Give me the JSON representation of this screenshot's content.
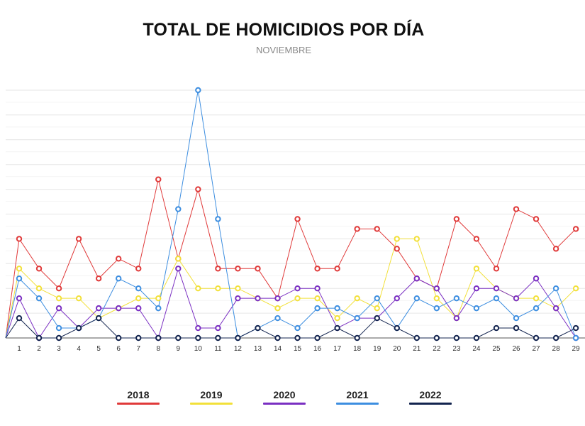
{
  "chart_data": {
    "type": "line",
    "title": "TOTAL DE HOMICIDIOS POR DÍA",
    "subtitle": "NOVIEMBRE",
    "xlabel": "",
    "ylabel": "",
    "x": [
      1,
      2,
      3,
      4,
      5,
      6,
      7,
      8,
      9,
      10,
      11,
      12,
      13,
      14,
      15,
      16,
      17,
      18,
      19,
      20,
      21,
      22,
      23,
      24,
      25,
      26,
      27,
      28,
      29
    ],
    "ylim": [
      0,
      25
    ],
    "grid": true,
    "legend_position": "bottom",
    "series": [
      {
        "name": "2018",
        "color": "#e03a3a",
        "values": [
          10,
          7,
          5,
          10,
          6,
          8,
          7,
          16,
          8,
          15,
          7,
          7,
          7,
          4,
          12,
          7,
          7,
          11,
          11,
          9,
          6,
          5,
          12,
          10,
          7,
          13,
          12,
          9,
          11
        ]
      },
      {
        "name": "2019",
        "color": "#f2e03a",
        "values": [
          7,
          5,
          4,
          4,
          2,
          3,
          4,
          4,
          8,
          5,
          5,
          5,
          4,
          3,
          4,
          4,
          2,
          4,
          3,
          10,
          10,
          4,
          2,
          7,
          5,
          4,
          4,
          3,
          5
        ]
      },
      {
        "name": "2020",
        "color": "#7a2fc2",
        "values": [
          4,
          0,
          3,
          1,
          3,
          3,
          3,
          0,
          7,
          1,
          1,
          4,
          4,
          4,
          5,
          5,
          1,
          2,
          2,
          4,
          6,
          5,
          2,
          5,
          5,
          4,
          6,
          3,
          0
        ]
      },
      {
        "name": "2021",
        "color": "#3d8ee0",
        "values": [
          6,
          4,
          1,
          1,
          2,
          6,
          5,
          3,
          13,
          25,
          12,
          0,
          1,
          2,
          1,
          3,
          3,
          2,
          4,
          1,
          4,
          3,
          4,
          3,
          4,
          2,
          3,
          5,
          0
        ]
      },
      {
        "name": "2022",
        "color": "#13244f",
        "values": [
          2,
          0,
          0,
          1,
          2,
          0,
          0,
          0,
          0,
          0,
          0,
          0,
          1,
          0,
          0,
          0,
          1,
          0,
          2,
          1,
          0,
          0,
          0,
          0,
          1,
          1,
          0,
          0,
          1
        ]
      }
    ]
  }
}
